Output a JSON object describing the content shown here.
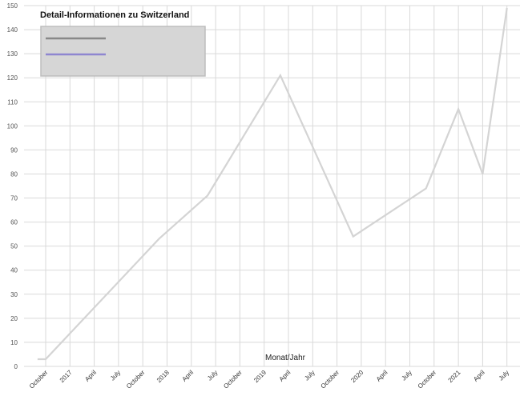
{
  "chart_data": {
    "type": "line",
    "title": "Detail-Informationen zu Switzerland",
    "xlabel": "Monat/Jahr",
    "ylabel": "",
    "ylim": [
      0,
      150
    ],
    "y_ticks": [
      0,
      10,
      20,
      30,
      40,
      50,
      60,
      70,
      80,
      90,
      100,
      110,
      120,
      130,
      140,
      150
    ],
    "grid": true,
    "legend_placement": "top-left",
    "x_ticks": [
      {
        "label": "October",
        "date": "2016-10"
      },
      {
        "label": "2017",
        "date": "2017-01"
      },
      {
        "label": "April",
        "date": "2017-04"
      },
      {
        "label": "July",
        "date": "2017-07"
      },
      {
        "label": "October",
        "date": "2017-10"
      },
      {
        "label": "2018",
        "date": "2018-01"
      },
      {
        "label": "April",
        "date": "2018-04"
      },
      {
        "label": "July",
        "date": "2018-07"
      },
      {
        "label": "October",
        "date": "2018-10"
      },
      {
        "label": "2019",
        "date": "2019-01"
      },
      {
        "label": "April",
        "date": "2019-04"
      },
      {
        "label": "July",
        "date": "2019-07"
      },
      {
        "label": "October",
        "date": "2019-10"
      },
      {
        "label": "2020",
        "date": "2020-01"
      },
      {
        "label": "April",
        "date": "2020-04"
      },
      {
        "label": "July",
        "date": "2020-07"
      },
      {
        "label": "October",
        "date": "2020-10"
      },
      {
        "label": "2021",
        "date": "2021-01"
      },
      {
        "label": "April",
        "date": "2021-04"
      },
      {
        "label": "July",
        "date": "2021-07"
      }
    ],
    "series": [
      {
        "color": "#d4d4d4",
        "points": [
          {
            "x": "2016-09",
            "y": 3
          },
          {
            "x": "2016-10",
            "y": 3
          },
          {
            "x": "2017-12",
            "y": 53
          },
          {
            "x": "2018-06",
            "y": 71
          },
          {
            "x": "2019-03",
            "y": 121
          },
          {
            "x": "2019-12",
            "y": 54
          },
          {
            "x": "2020-09",
            "y": 74
          },
          {
            "x": "2021-01",
            "y": 107
          },
          {
            "x": "2021-04",
            "y": 80
          },
          {
            "x": "2021-07",
            "y": 149
          }
        ]
      }
    ],
    "legend": [
      {
        "color": "#888888",
        "label": ""
      },
      {
        "color": "#8f86d0",
        "label": ""
      }
    ]
  }
}
